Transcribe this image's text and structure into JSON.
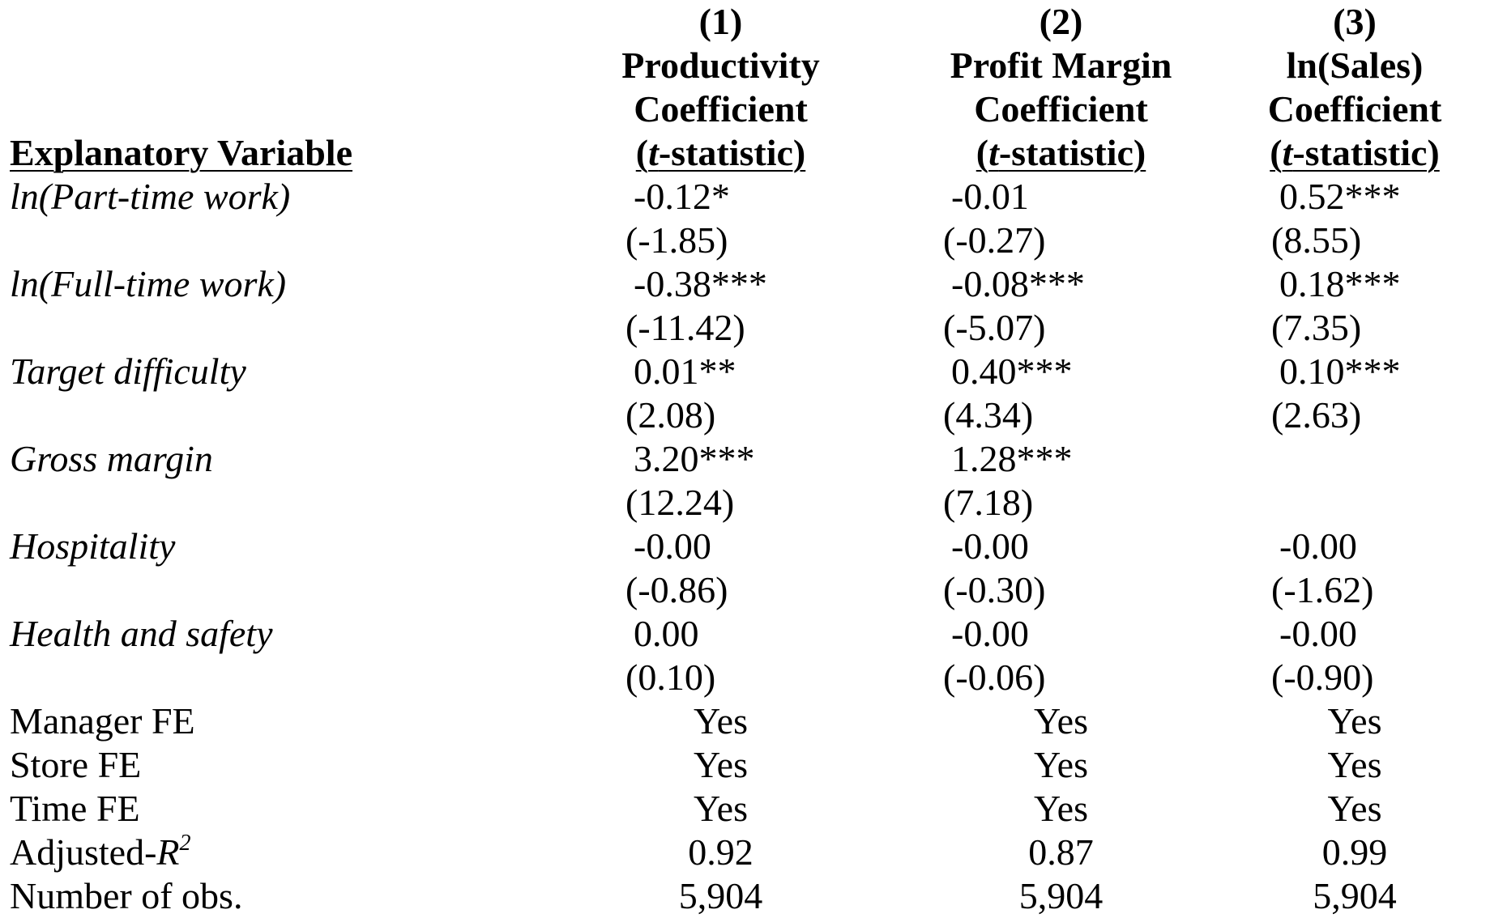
{
  "header": {
    "label": "Explanatory Variable",
    "models": [
      {
        "num": "(1)",
        "name": "Productivity",
        "coef": "Coefficient",
        "tstat_t": "t",
        "tstat_rest": "-statistic)",
        "tstat_open": "("
      },
      {
        "num": "(2)",
        "name": "Profit Margin",
        "coef": "Coefficient",
        "tstat_t": "t",
        "tstat_rest": "-statistic)",
        "tstat_open": "("
      },
      {
        "num": "(3)",
        "name": "ln(Sales)",
        "coef": "Coefficient",
        "tstat_t": "t",
        "tstat_rest": "-statistic)",
        "tstat_open": "("
      }
    ]
  },
  "rows": [
    {
      "label": "ln(Part-time work)",
      "coef": [
        "-0.12*",
        "-0.01",
        "0.52***"
      ],
      "tstat": [
        "(-1.85)",
        "(-0.27)",
        "(8.55)"
      ]
    },
    {
      "label": "ln(Full-time work)",
      "coef": [
        "-0.38***",
        "-0.08***",
        "0.18***"
      ],
      "tstat": [
        "(-11.42)",
        "(-5.07)",
        "(7.35)"
      ]
    },
    {
      "label": "Target difficulty",
      "coef": [
        "0.01**",
        "0.40***",
        "0.10***"
      ],
      "tstat": [
        "(2.08)",
        "(4.34)",
        "(2.63)"
      ]
    },
    {
      "label": "Gross margin",
      "coef": [
        "3.20***",
        "1.28***",
        ""
      ],
      "tstat": [
        "(12.24)",
        "(7.18)",
        ""
      ]
    },
    {
      "label": "Hospitality",
      "coef": [
        "-0.00",
        "-0.00",
        "-0.00"
      ],
      "tstat": [
        "(-0.86)",
        "(-0.30)",
        "(-1.62)"
      ]
    },
    {
      "label": "Health and safety",
      "coef": [
        "0.00",
        "-0.00",
        "-0.00"
      ],
      "tstat": [
        "(0.10)",
        "(-0.06)",
        "(-0.90)"
      ]
    }
  ],
  "footer": [
    {
      "label": "Manager FE",
      "values": [
        "Yes",
        "Yes",
        "Yes"
      ]
    },
    {
      "label": "Store FE",
      "values": [
        "Yes",
        "Yes",
        "Yes"
      ]
    },
    {
      "label": "Time FE",
      "values": [
        "Yes",
        "Yes",
        "Yes"
      ]
    },
    {
      "label": "Adjusted-",
      "label_italic": "R",
      "label_sup": "2",
      "values": [
        "0.92",
        "0.87",
        "0.99"
      ]
    },
    {
      "label": "Number of obs.",
      "values": [
        "5,904",
        "5,904",
        "5,904"
      ]
    }
  ]
}
